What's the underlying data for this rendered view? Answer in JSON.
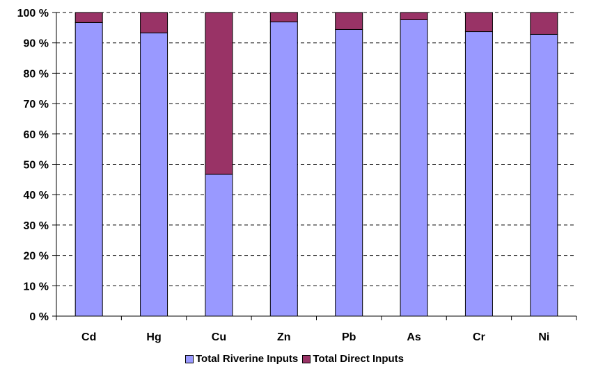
{
  "chart_data": {
    "type": "bar",
    "stacked": true,
    "percent": true,
    "categories": [
      "Cd",
      "Hg",
      "Cu",
      "Zn",
      "Pb",
      "As",
      "Cr",
      "Ni"
    ],
    "series": [
      {
        "name": "Total Riverine Inputs",
        "color": "#9999FF",
        "values": [
          96.7,
          93.3,
          46.7,
          96.9,
          94.4,
          97.6,
          93.7,
          92.8
        ]
      },
      {
        "name": "Total Direct Inputs",
        "color": "#993366",
        "values": [
          3.3,
          6.7,
          53.3,
          3.1,
          5.6,
          2.4,
          6.3,
          7.2
        ]
      }
    ],
    "yticks": [
      "0 %",
      "10 %",
      "20 %",
      "30 %",
      "40 %",
      "50 %",
      "60 %",
      "70 %",
      "80 %",
      "90 %",
      "100 %"
    ],
    "ylim": [
      0,
      100
    ],
    "grid": "dashed horizontal",
    "legend_position": "bottom"
  }
}
